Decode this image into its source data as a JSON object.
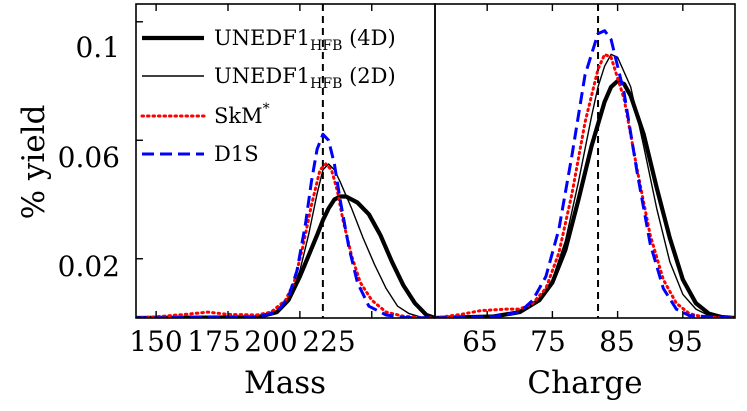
{
  "chart_data": [
    {
      "type": "line",
      "xlabel": "Mass",
      "ylabel": "% yield",
      "xlim": [
        143,
        247
      ],
      "ylim": [
        0,
        0.106
      ],
      "xticks": [
        "150",
        "175",
        "200",
        "225"
      ],
      "yticks": [
        "0.02",
        "0.06",
        "0.1"
      ],
      "reference_line_x": 208,
      "series": [
        {
          "name": "UNEDF1HFB (4D)",
          "style": "thick-solid",
          "color": "#000000",
          "x": [
            143,
            185,
            192,
            196,
            200,
            203,
            206,
            208,
            210,
            212,
            214,
            216,
            220,
            224,
            228,
            232,
            236,
            240,
            244,
            247
          ],
          "y": [
            0,
            0.0002,
            0.002,
            0.006,
            0.014,
            0.021,
            0.028,
            0.033,
            0.037,
            0.04,
            0.041,
            0.041,
            0.039,
            0.035,
            0.028,
            0.019,
            0.011,
            0.005,
            0.001,
            0
          ]
        },
        {
          "name": "UNEDF1HFB (2D)",
          "style": "thin-solid",
          "color": "#000000",
          "x": [
            143,
            185,
            192,
            196,
            200,
            203,
            206,
            208,
            210,
            212,
            214,
            218,
            222,
            226,
            230,
            234,
            238,
            242,
            247
          ],
          "y": [
            0,
            0.0002,
            0.002,
            0.006,
            0.016,
            0.028,
            0.042,
            0.05,
            0.052,
            0.05,
            0.046,
            0.037,
            0.027,
            0.018,
            0.01,
            0.004,
            0.0015,
            0.0003,
            0
          ]
        },
        {
          "name": "SkM*",
          "style": "dotted",
          "color": "#ff0000",
          "x": [
            143,
            150,
            160,
            168,
            175,
            185,
            190,
            195,
            198,
            201,
            204,
            207,
            209,
            211,
            213,
            215,
            218,
            221,
            225,
            230,
            236,
            242,
            247
          ],
          "y": [
            0,
            0.0004,
            0.0012,
            0.002,
            0.0012,
            0.001,
            0.002,
            0.006,
            0.012,
            0.024,
            0.038,
            0.05,
            0.052,
            0.05,
            0.043,
            0.033,
            0.021,
            0.012,
            0.006,
            0.002,
            0.0006,
            0.0001,
            0
          ]
        },
        {
          "name": "D1S",
          "style": "dashed",
          "color": "#0000ff",
          "x": [
            143,
            185,
            192,
            196,
            199,
            202,
            204,
            206,
            208,
            210,
            212,
            214,
            217,
            220,
            224,
            230,
            236,
            247
          ],
          "y": [
            0,
            0.0003,
            0.002,
            0.007,
            0.016,
            0.032,
            0.046,
            0.057,
            0.062,
            0.06,
            0.052,
            0.04,
            0.024,
            0.012,
            0.004,
            0.001,
            0.0002,
            0
          ]
        }
      ]
    },
    {
      "type": "line",
      "xlabel": "Charge",
      "ylim": [
        0,
        0.106
      ],
      "xlim": [
        57,
        103
      ],
      "xticks": [
        "65",
        "75",
        "85",
        "95"
      ],
      "reference_line_x": 82,
      "series": [
        {
          "name": "UNEDF1HFB (4D)",
          "style": "thick-solid",
          "color": "#000000",
          "x": [
            57,
            66,
            70,
            73,
            75,
            77,
            79,
            81,
            83,
            84,
            85,
            86,
            87,
            89,
            91,
            93,
            95,
            97,
            99,
            101,
            103
          ],
          "y": [
            0,
            0.0005,
            0.002,
            0.006,
            0.012,
            0.023,
            0.04,
            0.058,
            0.073,
            0.078,
            0.08,
            0.079,
            0.075,
            0.062,
            0.044,
            0.027,
            0.013,
            0.005,
            0.0015,
            0.0003,
            0
          ]
        },
        {
          "name": "UNEDF1HFB (2D)",
          "style": "thin-solid",
          "color": "#000000",
          "x": [
            57,
            66,
            70,
            73,
            75,
            77,
            79,
            81,
            82,
            83,
            84,
            85,
            87,
            89,
            91,
            93,
            95,
            97,
            99,
            101,
            103
          ],
          "y": [
            0,
            0.0005,
            0.002,
            0.006,
            0.013,
            0.026,
            0.046,
            0.068,
            0.078,
            0.085,
            0.089,
            0.088,
            0.078,
            0.058,
            0.037,
            0.019,
            0.008,
            0.003,
            0.0008,
            0.0002,
            0
          ]
        },
        {
          "name": "SkM*",
          "style": "dotted",
          "color": "#ff0000",
          "x": [
            57,
            61,
            64,
            68,
            70,
            72,
            74,
            76,
            78,
            80,
            82,
            83,
            84,
            86,
            88,
            90,
            92,
            94,
            96,
            98,
            103
          ],
          "y": [
            0,
            0.0012,
            0.0025,
            0.003,
            0.003,
            0.005,
            0.01,
            0.022,
            0.042,
            0.066,
            0.084,
            0.089,
            0.088,
            0.074,
            0.05,
            0.028,
            0.013,
            0.005,
            0.0015,
            0.0004,
            0
          ]
        },
        {
          "name": "D1S",
          "style": "dashed",
          "color": "#0000ff",
          "x": [
            57,
            66,
            70,
            72,
            74,
            76,
            78,
            80,
            82,
            83,
            84,
            86,
            88,
            90,
            92,
            94,
            96,
            103
          ],
          "y": [
            0,
            0.0005,
            0.002,
            0.006,
            0.014,
            0.03,
            0.055,
            0.082,
            0.096,
            0.097,
            0.094,
            0.076,
            0.049,
            0.025,
            0.01,
            0.003,
            0.0008,
            0
          ]
        }
      ]
    }
  ],
  "legend": {
    "entries": [
      {
        "base": "UNEDF1",
        "sub": "HFB",
        "suffix": " (4D)",
        "style": "thick-solid",
        "color": "#000000"
      },
      {
        "base": "UNEDF1",
        "sub": "HFB",
        "suffix": " (2D)",
        "style": "thin-solid",
        "color": "#000000"
      },
      {
        "base": "SkM",
        "sup": "*",
        "style": "dotted",
        "color": "#ff0000"
      },
      {
        "base": "D1S",
        "style": "dashed",
        "color": "#0000ff"
      }
    ]
  }
}
